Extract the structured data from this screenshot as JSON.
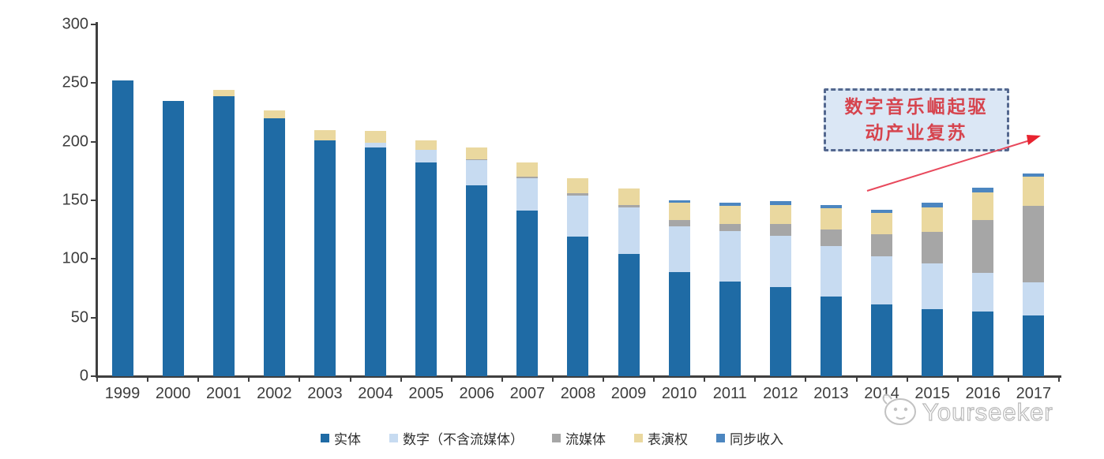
{
  "chart_data": {
    "type": "bar",
    "stacked": true,
    "title": "",
    "xlabel": "",
    "ylabel": "",
    "categories": [
      "1999",
      "2000",
      "2001",
      "2002",
      "2003",
      "2004",
      "2005",
      "2006",
      "2007",
      "2008",
      "2009",
      "2010",
      "2011",
      "2012",
      "2013",
      "2014",
      "2015",
      "2016",
      "2017"
    ],
    "series": [
      {
        "name": "实体",
        "color": "#1f6ba5",
        "values": [
          252,
          235,
          239,
          220,
          201,
          195,
          182,
          163,
          141,
          119,
          104,
          89,
          81,
          76,
          68,
          61,
          57,
          55,
          52
        ]
      },
      {
        "name": "数字（不含流媒体）",
        "color": "#c7dbf1",
        "values": [
          0,
          0,
          0,
          0,
          0,
          4,
          11,
          21,
          28,
          35,
          40,
          39,
          43,
          44,
          43,
          41,
          39,
          33,
          28
        ]
      },
      {
        "name": "流媒体",
        "color": "#a6a6a6",
        "values": [
          0,
          0,
          0,
          0,
          0,
          0,
          0,
          1,
          1,
          2,
          2,
          5,
          6,
          10,
          14,
          19,
          27,
          45,
          65
        ]
      },
      {
        "name": "表演权",
        "color": "#ead89f",
        "values": [
          0,
          0,
          5,
          7,
          9,
          10,
          8,
          10,
          12,
          13,
          14,
          15,
          15,
          16,
          18,
          18,
          21,
          24,
          25
        ]
      },
      {
        "name": "同步收入",
        "color": "#4c86c0",
        "values": [
          0,
          0,
          0,
          0,
          0,
          0,
          0,
          0,
          0,
          0,
          0,
          2,
          3,
          3,
          3,
          3,
          4,
          4,
          3
        ]
      }
    ],
    "ylim": [
      0,
      300
    ],
    "yticks": [
      300,
      250,
      200,
      150,
      100,
      50,
      0
    ],
    "grid": false,
    "legend_position": "bottom"
  },
  "annotation": {
    "line1": "数字音乐崛起驱",
    "line2": "动产业复苏",
    "box_fill": "#dbe7f5",
    "box_border": "#54688f",
    "text_color": "#d6444e",
    "arrow_color": "#e8495c"
  },
  "watermark": {
    "text": "Yourseeker"
  },
  "colors": {
    "axis": "#3f3f3f"
  }
}
